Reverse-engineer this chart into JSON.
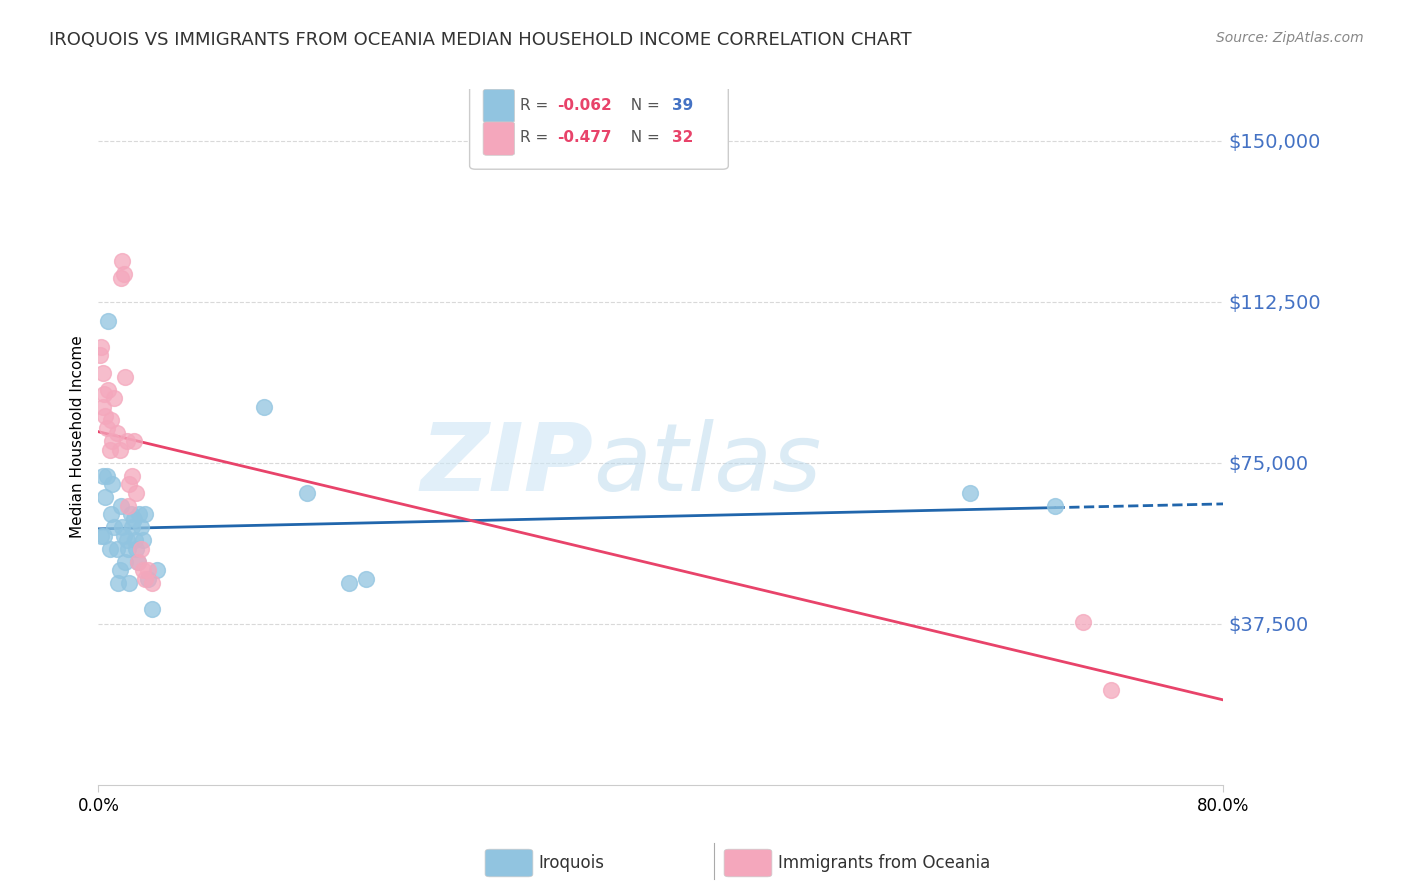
{
  "title": "IROQUOIS VS IMMIGRANTS FROM OCEANIA MEDIAN HOUSEHOLD INCOME CORRELATION CHART",
  "source": "Source: ZipAtlas.com",
  "ylabel": "Median Household Income",
  "xlim": [
    0.0,
    0.8
  ],
  "ylim": [
    0,
    162000
  ],
  "yticks": [
    37500,
    75000,
    112500,
    150000
  ],
  "ytick_labels": [
    "$37,500",
    "$75,000",
    "$112,500",
    "$150,000"
  ],
  "xticks": [
    0.0,
    0.8
  ],
  "xtick_labels": [
    "0.0%",
    "80.0%"
  ],
  "blue_color": "#91c4e0",
  "pink_color": "#f4a7bc",
  "blue_line_color": "#2166ac",
  "pink_line_color": "#e8436a",
  "axis_color": "#4472c4",
  "grid_color": "#d9d9d9",
  "iroquois_x": [
    0.004,
    0.005,
    0.006,
    0.008,
    0.009,
    0.01,
    0.011,
    0.013,
    0.014,
    0.015,
    0.016,
    0.017,
    0.018,
    0.019,
    0.02,
    0.021,
    0.022,
    0.023,
    0.024,
    0.025,
    0.026,
    0.027,
    0.028,
    0.029,
    0.03,
    0.032,
    0.033,
    0.035,
    0.038,
    0.042,
    0.118,
    0.148,
    0.178,
    0.19,
    0.62,
    0.68,
    0.002,
    0.003,
    0.007
  ],
  "iroquois_y": [
    58000,
    67000,
    72000,
    55000,
    63000,
    70000,
    60000,
    55000,
    47000,
    50000,
    65000,
    60000,
    58000,
    52000,
    57000,
    55000,
    47000,
    63000,
    60000,
    62000,
    57000,
    55000,
    52000,
    63000,
    60000,
    57000,
    63000,
    48000,
    41000,
    50000,
    88000,
    68000,
    47000,
    48000,
    68000,
    65000,
    58000,
    72000,
    108000
  ],
  "oceania_x": [
    0.001,
    0.002,
    0.003,
    0.003,
    0.004,
    0.005,
    0.006,
    0.007,
    0.008,
    0.009,
    0.01,
    0.011,
    0.013,
    0.015,
    0.016,
    0.017,
    0.018,
    0.019,
    0.02,
    0.021,
    0.022,
    0.024,
    0.025,
    0.027,
    0.028,
    0.03,
    0.032,
    0.033,
    0.035,
    0.038,
    0.7,
    0.72
  ],
  "oceania_y": [
    100000,
    102000,
    96000,
    88000,
    91000,
    86000,
    83000,
    92000,
    78000,
    85000,
    80000,
    90000,
    82000,
    78000,
    118000,
    122000,
    119000,
    95000,
    80000,
    65000,
    70000,
    72000,
    80000,
    68000,
    52000,
    55000,
    50000,
    48000,
    50000,
    47000,
    38000,
    22000
  ]
}
